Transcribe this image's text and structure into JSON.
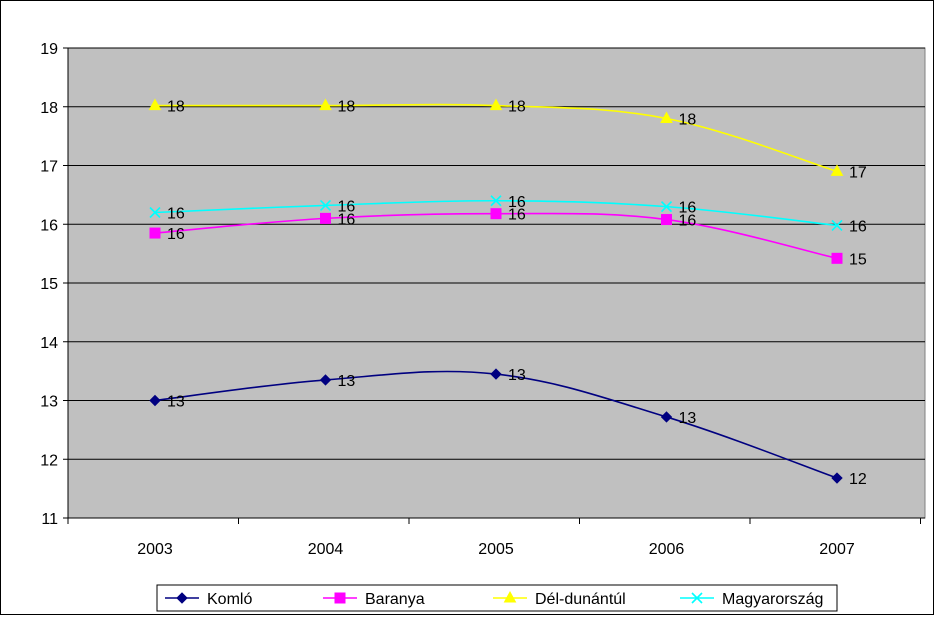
{
  "chart_data": {
    "type": "line",
    "title": "",
    "xlabel": "",
    "ylabel": "",
    "categories": [
      "2003",
      "2004",
      "2005",
      "2006",
      "2007"
    ],
    "ylim": [
      11,
      19
    ],
    "yticks": [
      11,
      12,
      13,
      14,
      15,
      16,
      17,
      18,
      19
    ],
    "grid": "horizontal",
    "plot_background": "#c0c0c0",
    "legend_position": "bottom",
    "data_labels": true,
    "series": [
      {
        "name": "Komló",
        "color": "#000080",
        "marker": "diamond",
        "values": [
          13.0,
          13.35,
          13.45,
          12.72,
          11.68
        ],
        "labels": [
          "13",
          "13",
          "13",
          "13",
          "12"
        ]
      },
      {
        "name": "Baranya",
        "color": "#ff00ff",
        "marker": "square",
        "values": [
          15.85,
          16.1,
          16.18,
          16.08,
          15.42
        ],
        "labels": [
          "16",
          "16",
          "16",
          "16",
          "15"
        ]
      },
      {
        "name": "Dél-dunántúl",
        "color": "#ffff00",
        "marker": "triangle",
        "values": [
          18.02,
          18.02,
          18.02,
          17.8,
          16.9
        ],
        "labels": [
          "18",
          "18",
          "18",
          "18",
          "17"
        ]
      },
      {
        "name": "Magyarország",
        "color": "#00ffff",
        "marker": "x",
        "values": [
          16.2,
          16.32,
          16.4,
          16.3,
          15.98
        ],
        "labels": [
          "16",
          "16",
          "16",
          "16",
          "16"
        ]
      }
    ]
  }
}
